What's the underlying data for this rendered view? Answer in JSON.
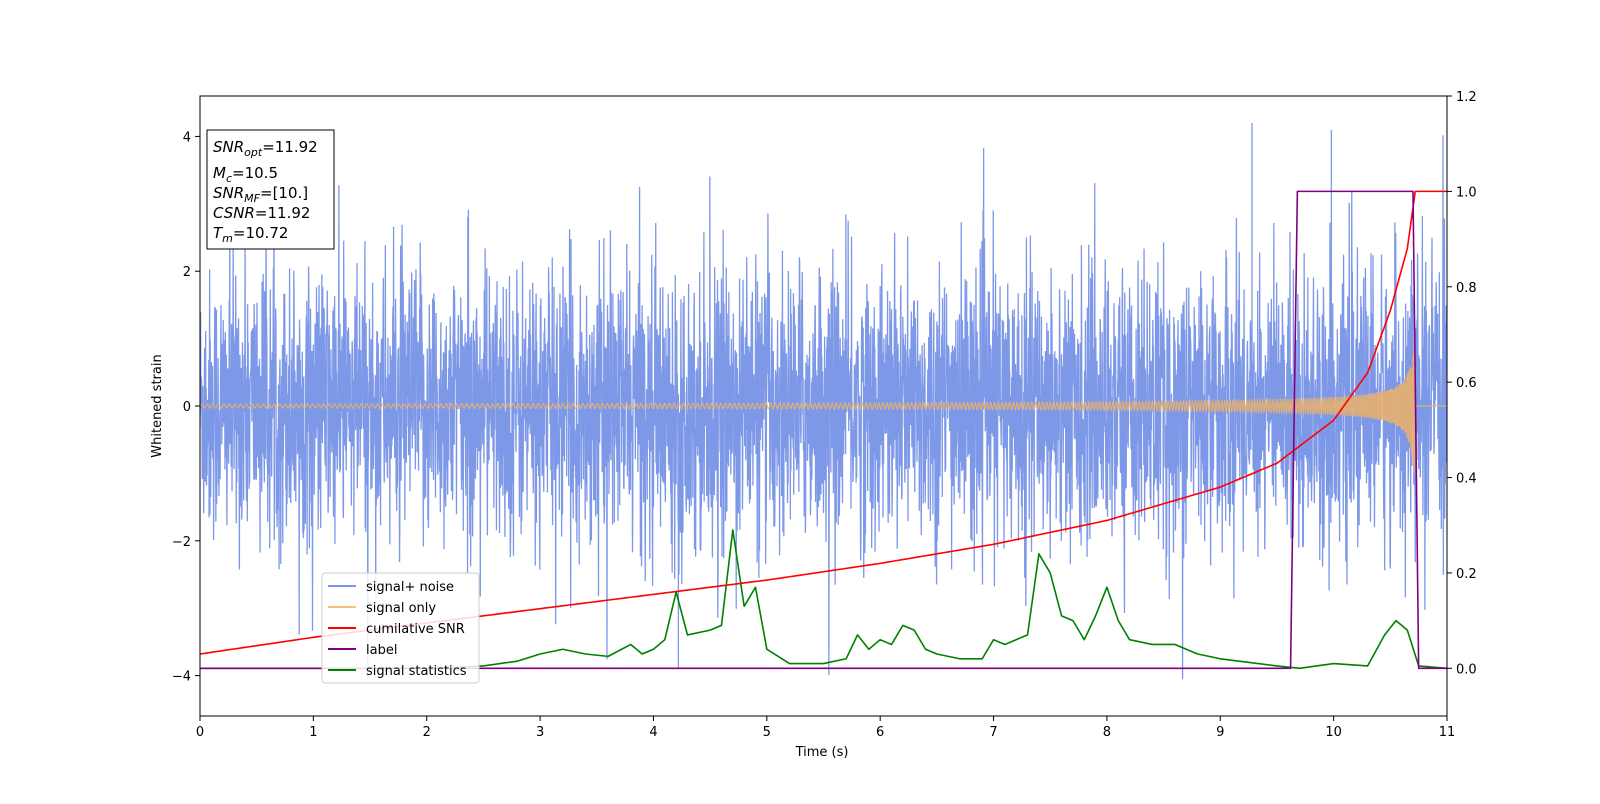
{
  "chart_data": {
    "type": "line",
    "xlabel": "Time (s)",
    "ylabel": "Whitened strain",
    "xlim": [
      0,
      11
    ],
    "ylim": [
      -4.6,
      4.6
    ],
    "y2lim": [
      -0.1,
      1.2
    ],
    "grid": false,
    "legend_placement": "lower-left",
    "x_ticks": [
      "0",
      "1",
      "2",
      "3",
      "4",
      "5",
      "6",
      "7",
      "8",
      "9",
      "10",
      "11"
    ],
    "y_ticks": [
      "4",
      "2",
      "0",
      "−2",
      "−4"
    ],
    "y2_ticks": [
      "1.2",
      "1.0",
      "0.8",
      "0.6",
      "0.4",
      "0.2",
      "0.0"
    ],
    "info_box": {
      "snr_opt": {
        "sym": "SNR",
        "sub": "opt",
        "value": "=11.92"
      },
      "mc": {
        "sym": "M",
        "sub": "c",
        "value": "=10.5"
      },
      "snr_mf": {
        "sym": "SNR",
        "sub": "MF",
        "value": "=[10.]"
      },
      "csnr": {
        "sym": "CSNR",
        "sub": "",
        "value": "=11.92"
      },
      "tm": {
        "sym": "T",
        "sub": "m",
        "value": "=10.72"
      }
    },
    "series": [
      {
        "name": "signal+ noise",
        "color": "#7b96e8",
        "axis": "left",
        "kind": "noise",
        "noise_std": 1.0,
        "peaks": [
          4.2,
          4.1,
          -3.9
        ]
      },
      {
        "name": "signal only",
        "color": "#e8b06e",
        "axis": "left",
        "kind": "chirp",
        "t_merge": 10.72,
        "amplitude_start": 0.03,
        "amplitude_end": 1.0
      },
      {
        "name": "cumilative SNR",
        "color": "#ff0000",
        "axis": "right",
        "x": [
          0,
          1,
          2,
          3,
          4,
          5,
          6,
          7,
          8,
          9,
          9.5,
          10,
          10.3,
          10.5,
          10.65,
          10.72,
          11
        ],
        "values": [
          0.03,
          0.065,
          0.095,
          0.125,
          0.155,
          0.185,
          0.22,
          0.26,
          0.31,
          0.38,
          0.43,
          0.52,
          0.62,
          0.75,
          0.88,
          1.0,
          1.0
        ]
      },
      {
        "name": "label",
        "color": "#800080",
        "axis": "right",
        "x": [
          0,
          9.62,
          9.68,
          10.7,
          10.75,
          11
        ],
        "values": [
          0.0,
          0.0,
          1.0,
          1.0,
          0.0,
          0.0
        ]
      },
      {
        "name": "signal statistics",
        "color": "#008000",
        "axis": "right",
        "x": [
          0,
          0.5,
          1,
          1.5,
          2,
          2.5,
          2.8,
          3,
          3.2,
          3.4,
          3.6,
          3.8,
          3.9,
          4.0,
          4.1,
          4.2,
          4.3,
          4.5,
          4.6,
          4.7,
          4.8,
          4.9,
          5.0,
          5.2,
          5.5,
          5.7,
          5.8,
          5.9,
          6.0,
          6.1,
          6.2,
          6.3,
          6.4,
          6.5,
          6.7,
          6.9,
          7.0,
          7.1,
          7.3,
          7.4,
          7.5,
          7.6,
          7.7,
          7.8,
          7.9,
          8.0,
          8.1,
          8.2,
          8.4,
          8.6,
          8.8,
          9.0,
          9.5,
          9.7,
          10.0,
          10.3,
          10.45,
          10.55,
          10.65,
          10.75,
          11
        ],
        "values": [
          0.0,
          0.0,
          0.0,
          0.0,
          0.0,
          0.005,
          0.015,
          0.03,
          0.04,
          0.03,
          0.025,
          0.05,
          0.03,
          0.04,
          0.06,
          0.16,
          0.07,
          0.08,
          0.09,
          0.29,
          0.13,
          0.17,
          0.04,
          0.01,
          0.01,
          0.02,
          0.07,
          0.04,
          0.06,
          0.05,
          0.09,
          0.08,
          0.04,
          0.03,
          0.02,
          0.02,
          0.06,
          0.05,
          0.07,
          0.24,
          0.2,
          0.11,
          0.1,
          0.06,
          0.11,
          0.17,
          0.1,
          0.06,
          0.05,
          0.05,
          0.03,
          0.02,
          0.005,
          0.0,
          0.01,
          0.005,
          0.07,
          0.1,
          0.08,
          0.005,
          0.0
        ]
      }
    ]
  }
}
